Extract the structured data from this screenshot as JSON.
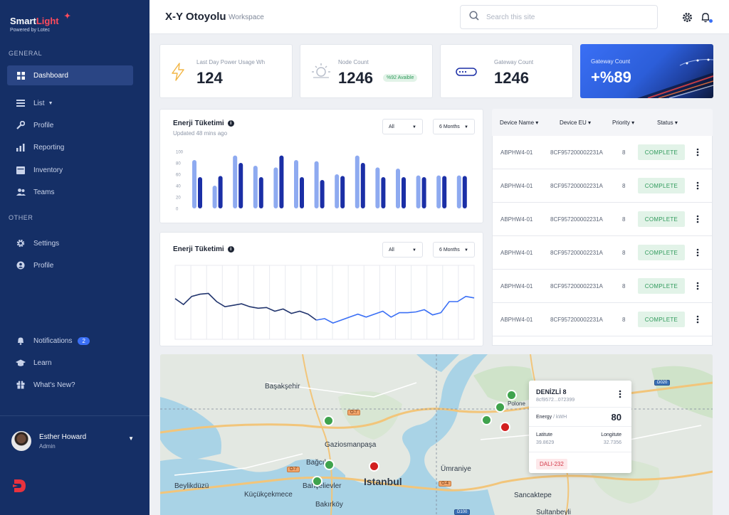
{
  "brand": {
    "name_part1": "Smart",
    "name_part2": "Light",
    "powered": "Powered by Lotec"
  },
  "sidebar": {
    "general_title": "GENERAL",
    "other_title": "OTHER",
    "items": [
      {
        "label": "Dashboard",
        "icon": "dashboard-icon"
      },
      {
        "label": "List",
        "icon": "list-icon"
      },
      {
        "label": "Profile",
        "icon": "wrench-icon"
      },
      {
        "label": "Reporting",
        "icon": "bar-chart-icon"
      },
      {
        "label": "Inventory",
        "icon": "box-icon"
      },
      {
        "label": "Teams",
        "icon": "users-icon"
      }
    ],
    "other_items": [
      {
        "label": "Settings",
        "icon": "gear-icon"
      },
      {
        "label": "Profile",
        "icon": "user-circle-icon"
      }
    ],
    "bottom_items": [
      {
        "label": "Notifications",
        "badge": "2",
        "icon": "bell-icon"
      },
      {
        "label": "Learn",
        "icon": "graduation-cap-icon"
      },
      {
        "label": "What's New?",
        "icon": "gift-icon"
      }
    ],
    "user": {
      "name": "Esther Howard",
      "role": "Admin"
    }
  },
  "header": {
    "title": "X-Y Otoyolu",
    "subtitle": "Workspace",
    "search_placeholder": "Search this site"
  },
  "stats": [
    {
      "label": "Last Day Power Usage Wh",
      "value": "124",
      "icon": "lightning-icon"
    },
    {
      "label": "Node Count",
      "value": "1246",
      "tag": "%92 Avaible",
      "icon": "sun-icon"
    },
    {
      "label": "Gateway Count",
      "value": "1246",
      "icon": "gateway-icon"
    },
    {
      "label": "Gateway Count",
      "value": "+%89"
    }
  ],
  "bar_card": {
    "title": "Enerji Tüketimi",
    "updated": "Updated 48 mins ago",
    "filter1": "All",
    "filter2": "6 Months"
  },
  "line_card": {
    "title": "Enerji Tüketimi",
    "filter1": "All",
    "filter2": "6 Months"
  },
  "chart_data": [
    {
      "type": "bar",
      "title": "Enerji Tüketimi",
      "ylim": [
        0,
        100
      ],
      "yticks": [
        "100",
        "80",
        "60",
        "40",
        "20",
        "0"
      ],
      "colors": {
        "a": "#8eaaf0",
        "b": "#1b2fa6"
      },
      "series": [
        {
          "values": [
            85,
            40,
            93,
            75,
            72,
            85,
            83,
            60,
            93,
            72,
            70,
            58,
            58,
            58
          ]
        },
        {
          "values": [
            55,
            57,
            80,
            55,
            93,
            55,
            50,
            57,
            80,
            55,
            55,
            55,
            57,
            57
          ]
        }
      ]
    },
    {
      "type": "line",
      "title": "Enerji Tüketimi",
      "colors": {
        "dark": "#22356e",
        "light": "#3a6ff5"
      },
      "values": [
        55,
        47,
        58,
        61,
        62,
        51,
        44,
        46,
        48,
        44,
        42,
        43,
        38,
        41,
        35,
        38,
        34,
        26,
        28,
        22,
        26,
        30,
        34,
        30,
        34,
        38,
        30,
        36,
        36,
        37,
        40,
        33,
        36,
        51,
        51,
        58,
        56
      ]
    }
  ],
  "table": {
    "headers": [
      "Device Name",
      "Device EU",
      "Priority",
      "Status"
    ],
    "rows": [
      {
        "name": "ABPHW4-01",
        "eu": "8CF957200002231A",
        "priority": "8",
        "status": "COMPLETE"
      },
      {
        "name": "ABPHW4-01",
        "eu": "8CF957200002231A",
        "priority": "8",
        "status": "COMPLETE"
      },
      {
        "name": "ABPHW4-01",
        "eu": "8CF957200002231A",
        "priority": "8",
        "status": "COMPLETE"
      },
      {
        "name": "ABPHW4-01",
        "eu": "8CF957200002231A",
        "priority": "8",
        "status": "COMPLETE"
      },
      {
        "name": "ABPHW4-01",
        "eu": "8CF957200002231A",
        "priority": "8",
        "status": "COMPLETE"
      },
      {
        "name": "ABPHW4-01",
        "eu": "8CF957200002231A",
        "priority": "8",
        "status": "COMPLETE"
      }
    ]
  },
  "map": {
    "places": [
      "Başakşehir",
      "Gaziosmanpaşa",
      "Bağcılar",
      "Bahçelievler",
      "Istanbul",
      "Ümraniye",
      "Beylikdüzü",
      "Küçükçekmece",
      "Bakırköy",
      "Sancaktepe",
      "Sultanbeyli",
      "Polone"
    ],
    "roads": [
      "O-7",
      "O-7",
      "O-4",
      "D020",
      "D100"
    ],
    "popup": {
      "title": "DENİZLİ 8",
      "id": "8cf9572...072399",
      "energy_label": "Energy",
      "energy_unit": "/ kWH",
      "energy_value": "80",
      "lat_label": "Latitute",
      "lat_value": "39.8629",
      "lon_label": "Longitute",
      "lon_value": "32.7356",
      "badge": "DALI-232"
    }
  }
}
